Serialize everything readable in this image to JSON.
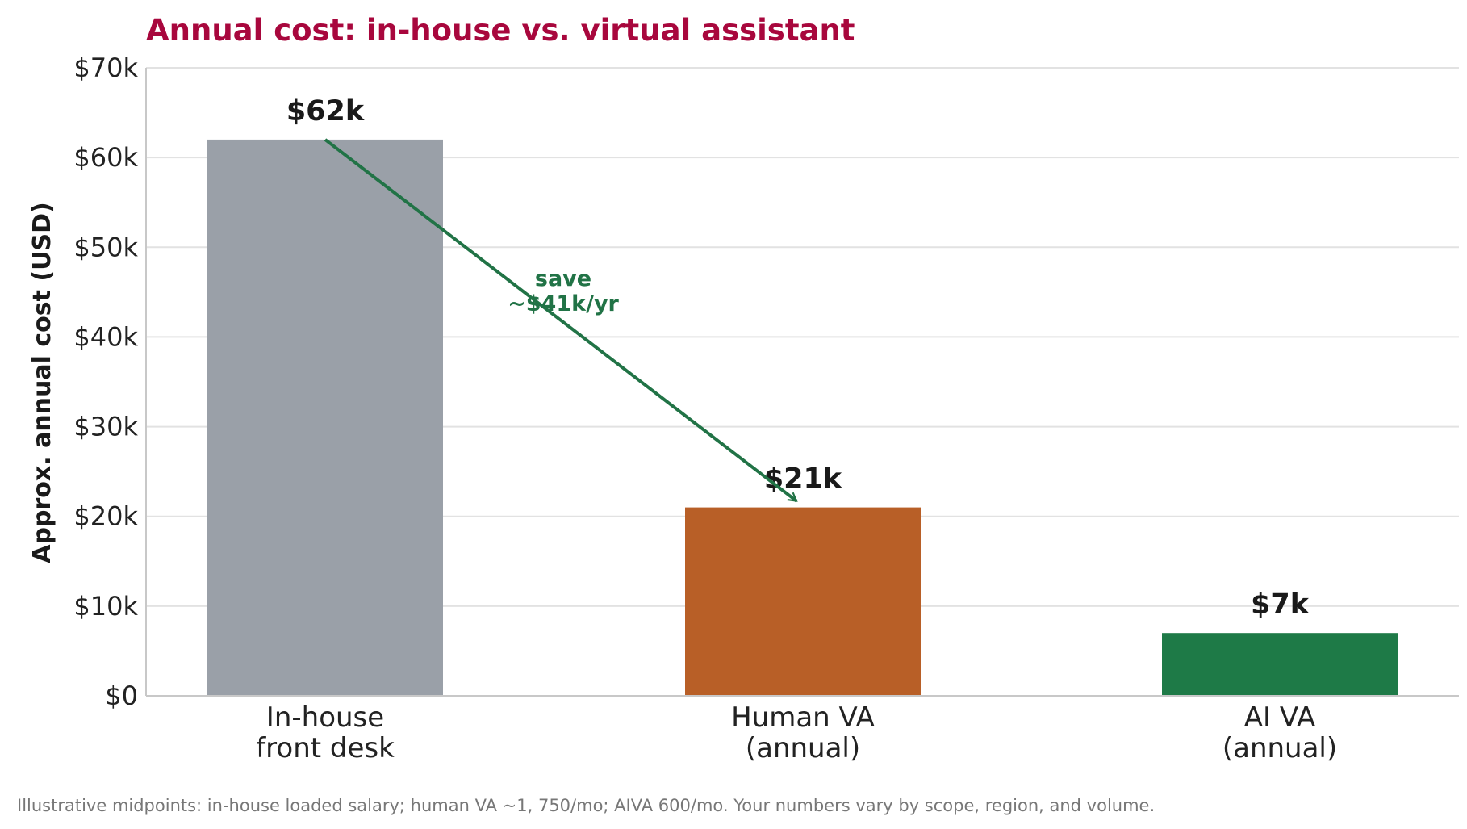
{
  "chart_data": {
    "type": "bar",
    "title": "Annual cost: in-house vs. virtual assistant",
    "ylabel": "Approx. annual cost (USD)",
    "xlabel": "",
    "ylim": [
      0,
      70000
    ],
    "yticks": [
      0,
      10000,
      20000,
      30000,
      40000,
      50000,
      60000,
      70000
    ],
    "ytick_labels": [
      "$0",
      "$10k",
      "$20k",
      "$30k",
      "$40k",
      "$50k",
      "$60k",
      "$70k"
    ],
    "grid": true,
    "categories": [
      [
        "In-house",
        "front desk"
      ],
      [
        "Human VA",
        "(annual)"
      ],
      [
        "AI VA",
        "(annual)"
      ]
    ],
    "values": [
      62000,
      21000,
      7000
    ],
    "data_labels": [
      "$62k",
      "$21k",
      "$7k"
    ],
    "colors": [
      "#9aa0a8",
      "#b85f27",
      "#1e7a47"
    ],
    "annotation": {
      "lines": [
        "save",
        "~$41k/yr"
      ],
      "color": "#217346",
      "arrow_from": {
        "category_index": 0,
        "value": 62000
      },
      "arrow_to": {
        "category_index": 1,
        "value": 21000
      }
    },
    "footnote": "Illustrative midpoints: in-house loaded salary; human VA ~1, 750/mo; AIVA 600/mo. Your numbers vary by scope, region, and volume."
  }
}
